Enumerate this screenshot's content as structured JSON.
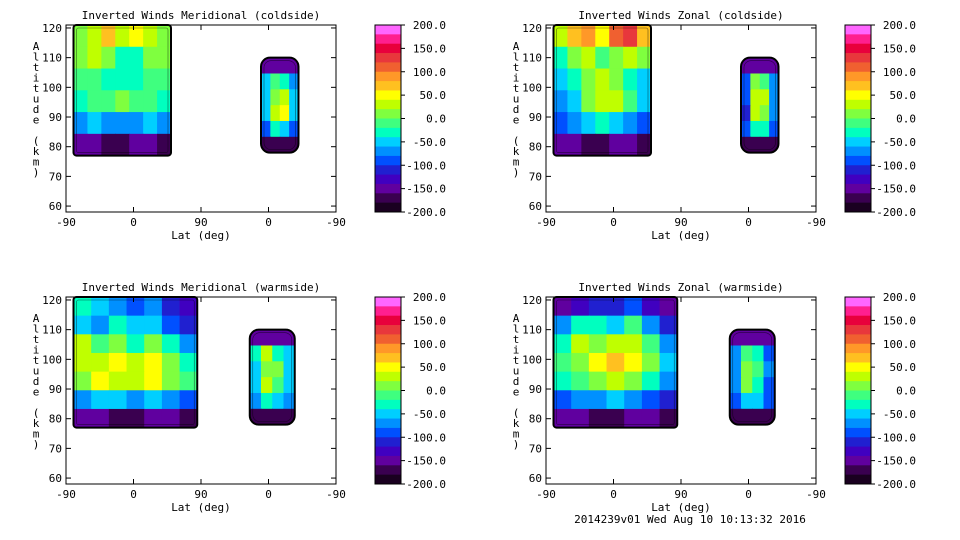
{
  "footer": "2014239v01 Wed Aug 10 10:13:32 2016",
  "colorbar": {
    "ticks": [
      "200.0",
      "150.0",
      "100.0",
      "50.0",
      "0.0",
      "-50.0",
      "-100.0",
      "-150.0",
      "-200.0"
    ],
    "colors": [
      "#ff66ff",
      "#ff1f8f",
      "#e8003c",
      "#e8373c",
      "#f06030",
      "#ff9828",
      "#ffc020",
      "#ffff00",
      "#bfff00",
      "#7fff3f",
      "#3fff7f",
      "#00ffbf",
      "#00cfff",
      "#0090ff",
      "#0050ff",
      "#2020d0",
      "#4000c0",
      "#60009f",
      "#3a0050",
      "#1a0020"
    ]
  },
  "chart_data": [
    {
      "type": "heatmap",
      "title": "Inverted Winds Meridional (coldside)",
      "xlabel": "Lat (deg)",
      "ylabel": "Altitude (km)",
      "xticks": [
        "-90",
        "0",
        "90",
        "0",
        "-90"
      ],
      "yticks": [
        "60",
        "70",
        "80",
        "90",
        "100",
        "110",
        "120"
      ],
      "ylim": [
        58,
        121
      ],
      "zlim": [
        -200,
        200
      ],
      "regions": [
        {
          "x_range": [
            "-80",
            "50"
          ],
          "y_range": [
            77,
            121
          ],
          "pattern": [
            [
              10,
              40,
              70,
              40,
              60,
              30,
              10
            ],
            [
              20,
              40,
              10,
              -20,
              -30,
              10,
              20
            ],
            [
              -10,
              0,
              -20,
              -30,
              -20,
              -10,
              0
            ],
            [
              -20,
              -10,
              0,
              10,
              0,
              -10,
              -20
            ],
            [
              -60,
              -50,
              -60,
              -70,
              -60,
              -50,
              -60
            ],
            [
              -150,
              -150,
              -160,
              -160,
              -150,
              -150,
              -160
            ]
          ]
        },
        {
          "x_range": [
            "-10",
            "40"
          ],
          "y_range": [
            78,
            110
          ],
          "pattern": [
            [
              -150,
              -150,
              -150,
              -150
            ],
            [
              -50,
              -10,
              -30,
              -60
            ],
            [
              -40,
              10,
              30,
              -50
            ],
            [
              -40,
              40,
              50,
              -50
            ],
            [
              -80,
              -30,
              -40,
              -90
            ],
            [
              -160,
              -160,
              -160,
              -160
            ]
          ]
        }
      ]
    },
    {
      "type": "heatmap",
      "title": "Inverted Winds Zonal (coldside)",
      "xlabel": "Lat (deg)",
      "ylabel": "Altitude (km)",
      "xticks": [
        "-90",
        "0",
        "90",
        "0",
        "-90"
      ],
      "yticks": [
        "60",
        "70",
        "80",
        "90",
        "100",
        "110",
        "120"
      ],
      "ylim": [
        58,
        121
      ],
      "zlim": [
        -200,
        200
      ],
      "regions": [
        {
          "x_range": [
            "-80",
            "50"
          ],
          "y_range": [
            77,
            121
          ],
          "pattern": [
            [
              40,
              80,
              90,
              60,
              120,
              130,
              80
            ],
            [
              -20,
              20,
              30,
              -10,
              20,
              40,
              20
            ],
            [
              -50,
              -30,
              20,
              30,
              10,
              -20,
              -40
            ],
            [
              -60,
              -40,
              20,
              40,
              30,
              -10,
              -50
            ],
            [
              -80,
              -60,
              -40,
              -30,
              -40,
              -60,
              -80
            ],
            [
              -150,
              -150,
              -160,
              -160,
              -150,
              -150,
              -160
            ]
          ]
        },
        {
          "x_range": [
            "-10",
            "40"
          ],
          "y_range": [
            78,
            110
          ],
          "pattern": [
            [
              -150,
              -150,
              -150,
              -150
            ],
            [
              -80,
              10,
              0,
              -70
            ],
            [
              -90,
              30,
              40,
              -60
            ],
            [
              -100,
              30,
              20,
              -70
            ],
            [
              -90,
              -20,
              -30,
              -90
            ],
            [
              -160,
              -160,
              -160,
              -160
            ]
          ]
        }
      ]
    },
    {
      "type": "heatmap",
      "title": "Inverted Winds Meridional (warmside)",
      "xlabel": "Lat (deg)",
      "ylabel": "Altitude (km)",
      "xticks": [
        "-90",
        "0",
        "90",
        "0",
        "-90"
      ],
      "yticks": [
        "60",
        "70",
        "80",
        "90",
        "100",
        "110",
        "120"
      ],
      "ylim": [
        58,
        121
      ],
      "zlim": [
        -200,
        200
      ],
      "regions": [
        {
          "x_range": [
            "-80",
            "85"
          ],
          "y_range": [
            77,
            121
          ],
          "pattern": [
            [
              -20,
              -40,
              -60,
              -80,
              -60,
              -100,
              -120
            ],
            [
              -40,
              -60,
              -30,
              -50,
              -40,
              -80,
              -100
            ],
            [
              40,
              -10,
              20,
              -20,
              10,
              -30,
              -60
            ],
            [
              30,
              40,
              60,
              30,
              50,
              10,
              -20
            ],
            [
              20,
              50,
              40,
              30,
              60,
              20,
              -10
            ],
            [
              -60,
              -40,
              -50,
              -60,
              -50,
              -70,
              -90
            ],
            [
              -150,
              -150,
              -160,
              -160,
              -150,
              -150,
              -160
            ]
          ]
        },
        {
          "x_range": [
            "-25",
            "35"
          ],
          "y_range": [
            78,
            110
          ],
          "pattern": [
            [
              -150,
              -150,
              -150,
              -150
            ],
            [
              -30,
              40,
              -20,
              -50
            ],
            [
              -40,
              10,
              20,
              -40
            ],
            [
              -40,
              30,
              0,
              -40
            ],
            [
              -60,
              -30,
              -40,
              -70
            ],
            [
              -160,
              -160,
              -160,
              -160
            ]
          ]
        }
      ]
    },
    {
      "type": "heatmap",
      "title": "Inverted Winds Zonal (warmside)",
      "xlabel": "Lat (deg)",
      "ylabel": "Altitude (km)",
      "xticks": [
        "-90",
        "0",
        "90",
        "0",
        "-90"
      ],
      "yticks": [
        "60",
        "70",
        "80",
        "90",
        "100",
        "110",
        "120"
      ],
      "ylim": [
        58,
        121
      ],
      "zlim": [
        -200,
        200
      ],
      "regions": [
        {
          "x_range": [
            "-80",
            "85"
          ],
          "y_range": [
            77,
            121
          ],
          "pattern": [
            [
              -150,
              -120,
              -110,
              -100,
              -80,
              -130,
              -150
            ],
            [
              -60,
              -30,
              -20,
              -40,
              -10,
              -60,
              -100
            ],
            [
              -20,
              30,
              20,
              40,
              30,
              -10,
              -60
            ],
            [
              -10,
              20,
              50,
              70,
              60,
              20,
              -50
            ],
            [
              -30,
              -10,
              10,
              30,
              20,
              -20,
              -70
            ],
            [
              -80,
              -70,
              -60,
              -50,
              -60,
              -80,
              -100
            ],
            [
              -150,
              -150,
              -160,
              -160,
              -150,
              -150,
              -160
            ]
          ]
        },
        {
          "x_range": [
            "-25",
            "35"
          ],
          "y_range": [
            78,
            110
          ],
          "pattern": [
            [
              -150,
              -150,
              -150,
              -150
            ],
            [
              -70,
              -10,
              -20,
              -80
            ],
            [
              -60,
              10,
              -10,
              -70
            ],
            [
              -60,
              20,
              -20,
              -80
            ],
            [
              -80,
              -40,
              -50,
              -90
            ],
            [
              -160,
              -160,
              -160,
              -160
            ]
          ]
        }
      ]
    }
  ]
}
